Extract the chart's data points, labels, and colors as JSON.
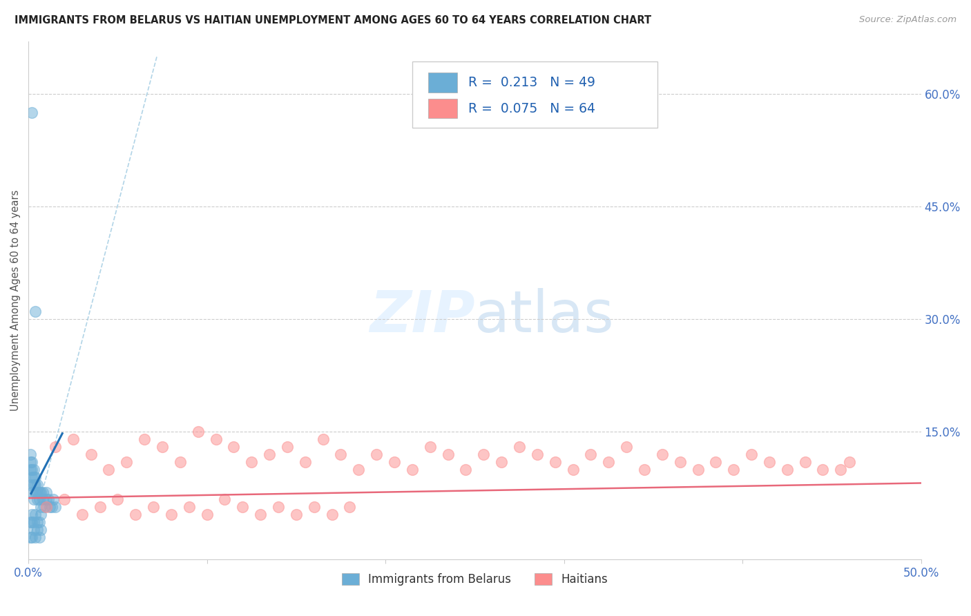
{
  "title": "IMMIGRANTS FROM BELARUS VS HAITIAN UNEMPLOYMENT AMONG AGES 60 TO 64 YEARS CORRELATION CHART",
  "source": "Source: ZipAtlas.com",
  "ylabel_left": "Unemployment Among Ages 60 to 64 years",
  "y_tick_labels_right": [
    "15.0%",
    "30.0%",
    "45.0%",
    "60.0%"
  ],
  "legend_label1": "Immigrants from Belarus",
  "legend_label2": "Haitians",
  "color_belarus": "#6baed6",
  "color_haiti": "#fc8d8d",
  "color_trend_belarus": "#2171b5",
  "color_trend_haiti": "#e8687a",
  "color_dashed": "#9ecae1",
  "xlim": [
    0.0,
    0.5
  ],
  "ylim": [
    -0.02,
    0.67
  ],
  "belarus_x": [
    0.002,
    0.004,
    0.001,
    0.001,
    0.001,
    0.001,
    0.002,
    0.002,
    0.002,
    0.002,
    0.003,
    0.003,
    0.003,
    0.003,
    0.004,
    0.004,
    0.004,
    0.005,
    0.005,
    0.005,
    0.006,
    0.006,
    0.007,
    0.007,
    0.008,
    0.008,
    0.009,
    0.01,
    0.01,
    0.011,
    0.012,
    0.013,
    0.014,
    0.015,
    0.001,
    0.002,
    0.002,
    0.003,
    0.004,
    0.005,
    0.006,
    0.007,
    0.001,
    0.002,
    0.003,
    0.004,
    0.005,
    0.006,
    0.007
  ],
  "belarus_y": [
    0.575,
    0.31,
    0.08,
    0.1,
    0.11,
    0.12,
    0.07,
    0.09,
    0.1,
    0.11,
    0.06,
    0.08,
    0.09,
    0.1,
    0.07,
    0.08,
    0.09,
    0.06,
    0.07,
    0.08,
    0.06,
    0.07,
    0.05,
    0.07,
    0.06,
    0.07,
    0.05,
    0.06,
    0.07,
    0.06,
    0.05,
    0.05,
    0.06,
    0.05,
    0.03,
    0.03,
    0.04,
    0.03,
    0.04,
    0.03,
    0.03,
    0.04,
    0.01,
    0.01,
    0.02,
    0.01,
    0.02,
    0.01,
    0.02
  ],
  "haiti_x": [
    0.015,
    0.025,
    0.035,
    0.045,
    0.055,
    0.065,
    0.075,
    0.085,
    0.095,
    0.105,
    0.115,
    0.125,
    0.135,
    0.145,
    0.155,
    0.165,
    0.175,
    0.185,
    0.195,
    0.205,
    0.215,
    0.225,
    0.235,
    0.245,
    0.255,
    0.265,
    0.275,
    0.285,
    0.295,
    0.305,
    0.315,
    0.325,
    0.335,
    0.345,
    0.355,
    0.365,
    0.375,
    0.385,
    0.395,
    0.405,
    0.415,
    0.425,
    0.435,
    0.445,
    0.455,
    0.46,
    0.01,
    0.02,
    0.03,
    0.04,
    0.05,
    0.06,
    0.07,
    0.08,
    0.09,
    0.1,
    0.11,
    0.12,
    0.13,
    0.14,
    0.15,
    0.16,
    0.17,
    0.18
  ],
  "haiti_y": [
    0.13,
    0.14,
    0.12,
    0.1,
    0.11,
    0.14,
    0.13,
    0.11,
    0.15,
    0.14,
    0.13,
    0.11,
    0.12,
    0.13,
    0.11,
    0.14,
    0.12,
    0.1,
    0.12,
    0.11,
    0.1,
    0.13,
    0.12,
    0.1,
    0.12,
    0.11,
    0.13,
    0.12,
    0.11,
    0.1,
    0.12,
    0.11,
    0.13,
    0.1,
    0.12,
    0.11,
    0.1,
    0.11,
    0.1,
    0.12,
    0.11,
    0.1,
    0.11,
    0.1,
    0.1,
    0.11,
    0.05,
    0.06,
    0.04,
    0.05,
    0.06,
    0.04,
    0.05,
    0.04,
    0.05,
    0.04,
    0.06,
    0.05,
    0.04,
    0.05,
    0.04,
    0.05,
    0.04,
    0.05
  ]
}
